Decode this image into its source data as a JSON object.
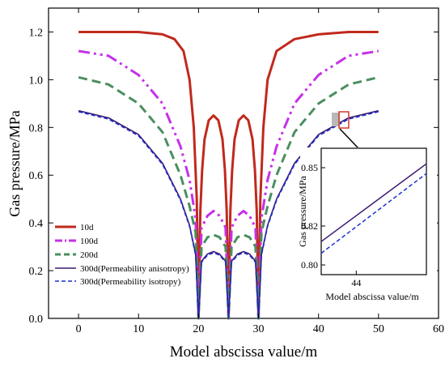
{
  "chart_data": {
    "type": "line",
    "xlabel": "Model abscissa value/m",
    "ylabel": "Gas pressure/MPa",
    "xlim": [
      -5,
      60
    ],
    "ylim": [
      0.0,
      1.3
    ],
    "x_ticks": [
      0,
      10,
      20,
      30,
      40,
      50,
      60
    ],
    "y_ticks": [
      0.0,
      0.2,
      0.4,
      0.6,
      0.8,
      1.0,
      1.2
    ],
    "y_tick_labels": [
      "0.0",
      "0.2",
      "0.4",
      "0.6",
      "0.8",
      "1.0",
      "1.2"
    ],
    "legend_position": "bottom-left",
    "grid": false,
    "series": [
      {
        "name": "10d",
        "color": "#c0291d",
        "dash": "solid",
        "width": 3,
        "x": [
          0,
          5,
          10,
          14,
          16,
          17.5,
          18.5,
          19.2,
          19.7,
          20,
          20.3,
          20.6,
          21,
          21.7,
          22.5,
          23.3,
          24,
          24.4,
          24.7,
          25,
          25.3,
          25.6,
          26,
          26.7,
          27.5,
          28.3,
          29,
          29.4,
          29.7,
          30,
          30.3,
          30.8,
          31.5,
          33,
          36,
          40,
          45,
          50
        ],
        "y": [
          1.2,
          1.2,
          1.2,
          1.19,
          1.17,
          1.12,
          1.0,
          0.8,
          0.5,
          0.0,
          0.45,
          0.62,
          0.75,
          0.83,
          0.85,
          0.83,
          0.75,
          0.62,
          0.45,
          0.0,
          0.45,
          0.62,
          0.75,
          0.83,
          0.85,
          0.83,
          0.75,
          0.62,
          0.45,
          0.0,
          0.5,
          0.8,
          1.0,
          1.12,
          1.17,
          1.19,
          1.2,
          1.2
        ]
      },
      {
        "name": "100d",
        "color": "#c630e8",
        "dash": "14 5 3 5 3 5",
        "width": 3,
        "x": [
          0,
          5,
          10,
          14,
          17,
          18.5,
          19.5,
          20,
          20.5,
          21.5,
          22.5,
          23.5,
          24.5,
          25,
          25.5,
          26.5,
          27.5,
          28.5,
          29.5,
          30,
          30.5,
          31.5,
          33,
          36,
          40,
          45,
          50
        ],
        "y": [
          1.12,
          1.1,
          1.02,
          0.9,
          0.72,
          0.58,
          0.42,
          0.0,
          0.38,
          0.43,
          0.45,
          0.43,
          0.38,
          0.0,
          0.38,
          0.43,
          0.45,
          0.43,
          0.38,
          0.0,
          0.42,
          0.58,
          0.72,
          0.9,
          1.02,
          1.1,
          1.12
        ]
      },
      {
        "name": "200d",
        "color": "#4a8f5f",
        "dash": "11 6",
        "width": 3,
        "x": [
          0,
          5,
          10,
          14,
          17,
          18.5,
          19.5,
          20,
          20.5,
          21.5,
          22.5,
          23.5,
          24.5,
          25,
          25.5,
          26.5,
          27.5,
          28.5,
          29.5,
          30,
          30.5,
          31.5,
          33,
          36,
          40,
          45,
          50
        ],
        "y": [
          1.01,
          0.98,
          0.9,
          0.78,
          0.6,
          0.47,
          0.36,
          0.0,
          0.3,
          0.34,
          0.35,
          0.34,
          0.3,
          0.0,
          0.3,
          0.34,
          0.35,
          0.34,
          0.3,
          0.0,
          0.36,
          0.47,
          0.6,
          0.78,
          0.9,
          0.98,
          1.01
        ]
      },
      {
        "name": "300d(Permeability anisotropy)",
        "color": "#3a1a70",
        "dash": "solid",
        "width": 1.6,
        "x": [
          0,
          5,
          10,
          14,
          17,
          18.5,
          19.5,
          20,
          20.5,
          21.5,
          22.5,
          23.5,
          24.5,
          25,
          25.5,
          26.5,
          27.5,
          28.5,
          29.5,
          30,
          30.5,
          31.5,
          33,
          36,
          40,
          45,
          50
        ],
        "y": [
          0.87,
          0.84,
          0.77,
          0.65,
          0.5,
          0.39,
          0.27,
          0.0,
          0.24,
          0.27,
          0.28,
          0.27,
          0.24,
          0.0,
          0.24,
          0.27,
          0.28,
          0.27,
          0.24,
          0.0,
          0.27,
          0.39,
          0.5,
          0.65,
          0.77,
          0.84,
          0.87
        ]
      },
      {
        "name": "300d(Permeability isotropy)",
        "color": "#1f2fcf",
        "dash": "5 3",
        "width": 1.6,
        "x": [
          0,
          5,
          10,
          14,
          17,
          18.5,
          19.5,
          20,
          20.5,
          21.5,
          22.5,
          23.5,
          24.5,
          25,
          25.5,
          26.5,
          27.5,
          28.5,
          29.5,
          30,
          30.5,
          31.5,
          33,
          36,
          40,
          45,
          50
        ],
        "y": [
          0.866,
          0.835,
          0.765,
          0.645,
          0.495,
          0.385,
          0.265,
          0.0,
          0.235,
          0.265,
          0.275,
          0.265,
          0.235,
          0.0,
          0.235,
          0.265,
          0.275,
          0.265,
          0.235,
          0.0,
          0.265,
          0.385,
          0.495,
          0.645,
          0.765,
          0.835,
          0.866
        ]
      }
    ],
    "inset": {
      "xlabel": "Model abscissa value/m",
      "ylabel": "Gas pressure/MPa",
      "xlim": [
        43,
        46
      ],
      "ylim": [
        0.795,
        0.86
      ],
      "x_ticks": [
        44
      ],
      "y_ticks": [
        0.8,
        0.82,
        0.85
      ],
      "y_tick_labels": [
        "0.80",
        "0.82",
        "0.85"
      ],
      "series": [
        {
          "name": "300d(Permeability anisotropy)",
          "x": [
            43,
            46
          ],
          "y": [
            0.812,
            0.852
          ]
        },
        {
          "name": "300d(Permeability isotropy)",
          "x": [
            43,
            46
          ],
          "y": [
            0.806,
            0.847
          ]
        }
      ]
    }
  }
}
